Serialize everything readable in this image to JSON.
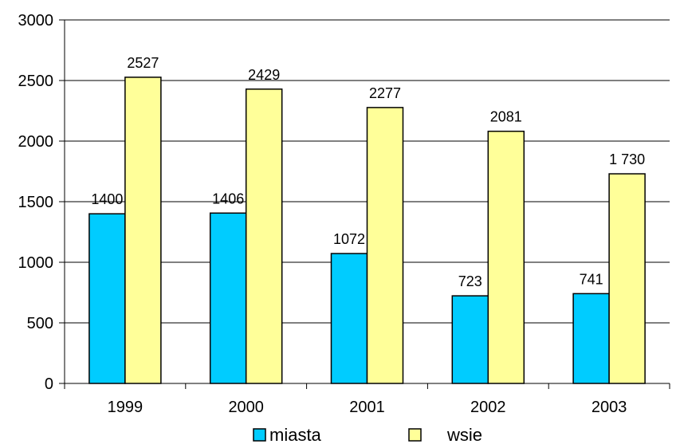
{
  "chart_data": {
    "type": "bar",
    "categories": [
      "1999",
      "2000",
      "2001",
      "2002",
      "2003"
    ],
    "series": [
      {
        "name": "miasta",
        "values": [
          1400,
          1406,
          1072,
          723,
          741
        ],
        "labels": [
          "1400",
          "1406",
          "1072",
          "723",
          "741"
        ],
        "color": "#00CCFF"
      },
      {
        "name": "wsie",
        "values": [
          2527,
          2429,
          2277,
          2081,
          1730
        ],
        "labels": [
          "2527",
          "2429",
          "2277",
          "2081",
          "1 730"
        ],
        "color": "#FFFF99"
      }
    ],
    "yticks": [
      "0",
      "500",
      "1000",
      "1500",
      "2000",
      "2500",
      "3000"
    ],
    "ylim": [
      0,
      3000
    ],
    "title": "",
    "xlabel": "",
    "ylabel": "",
    "grid": true,
    "legend_position": "bottom"
  }
}
